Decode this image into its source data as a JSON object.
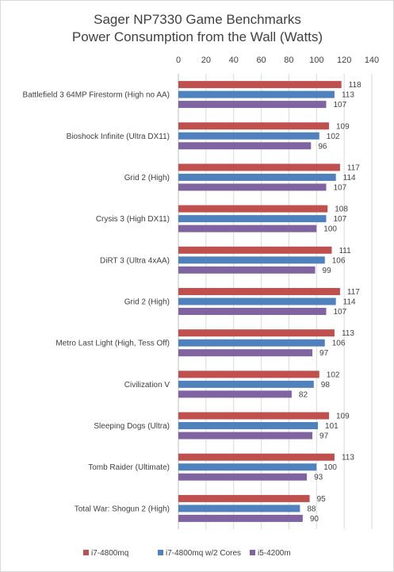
{
  "chart_data": {
    "type": "bar",
    "orientation": "horizontal",
    "title": [
      "Sager NP7330 Game Benchmarks",
      "Power Consumption from the Wall (Watts)"
    ],
    "xlabel": "",
    "ylabel": "",
    "xlim": [
      0,
      140
    ],
    "x_ticks": [
      0,
      20,
      40,
      60,
      80,
      100,
      120,
      140
    ],
    "x_axis_position": "top",
    "grid": true,
    "legend_position": "bottom",
    "categories": [
      "Battlefield 3 64MP Firestorm (High no AA)",
      "Bioshock Infinite (Ultra DX11)",
      "Grid 2 (High)",
      "Crysis  3 (High DX11)",
      "DiRT 3 (Ultra 4xAA)",
      "Grid 2 (High)",
      "Metro Last Light (High, Tess Off)",
      "Civilization V",
      "Sleeping Dogs (Ultra)",
      "Tomb Raider (Ultimate)",
      "Total War: Shogun 2 (High)"
    ],
    "series": [
      {
        "name": "i7-4800mq",
        "color": "#c0504d",
        "values": [
          118,
          109,
          117,
          108,
          111,
          117,
          113,
          102,
          109,
          113,
          95
        ]
      },
      {
        "name": "i7-4800mq w/2 Cores",
        "color": "#4f81bd",
        "values": [
          113,
          102,
          114,
          107,
          106,
          114,
          106,
          98,
          101,
          100,
          88
        ]
      },
      {
        "name": "i5-4200m",
        "color": "#8064a2",
        "values": [
          107,
          96,
          107,
          100,
          99,
          107,
          97,
          82,
          97,
          93,
          90
        ]
      }
    ]
  }
}
